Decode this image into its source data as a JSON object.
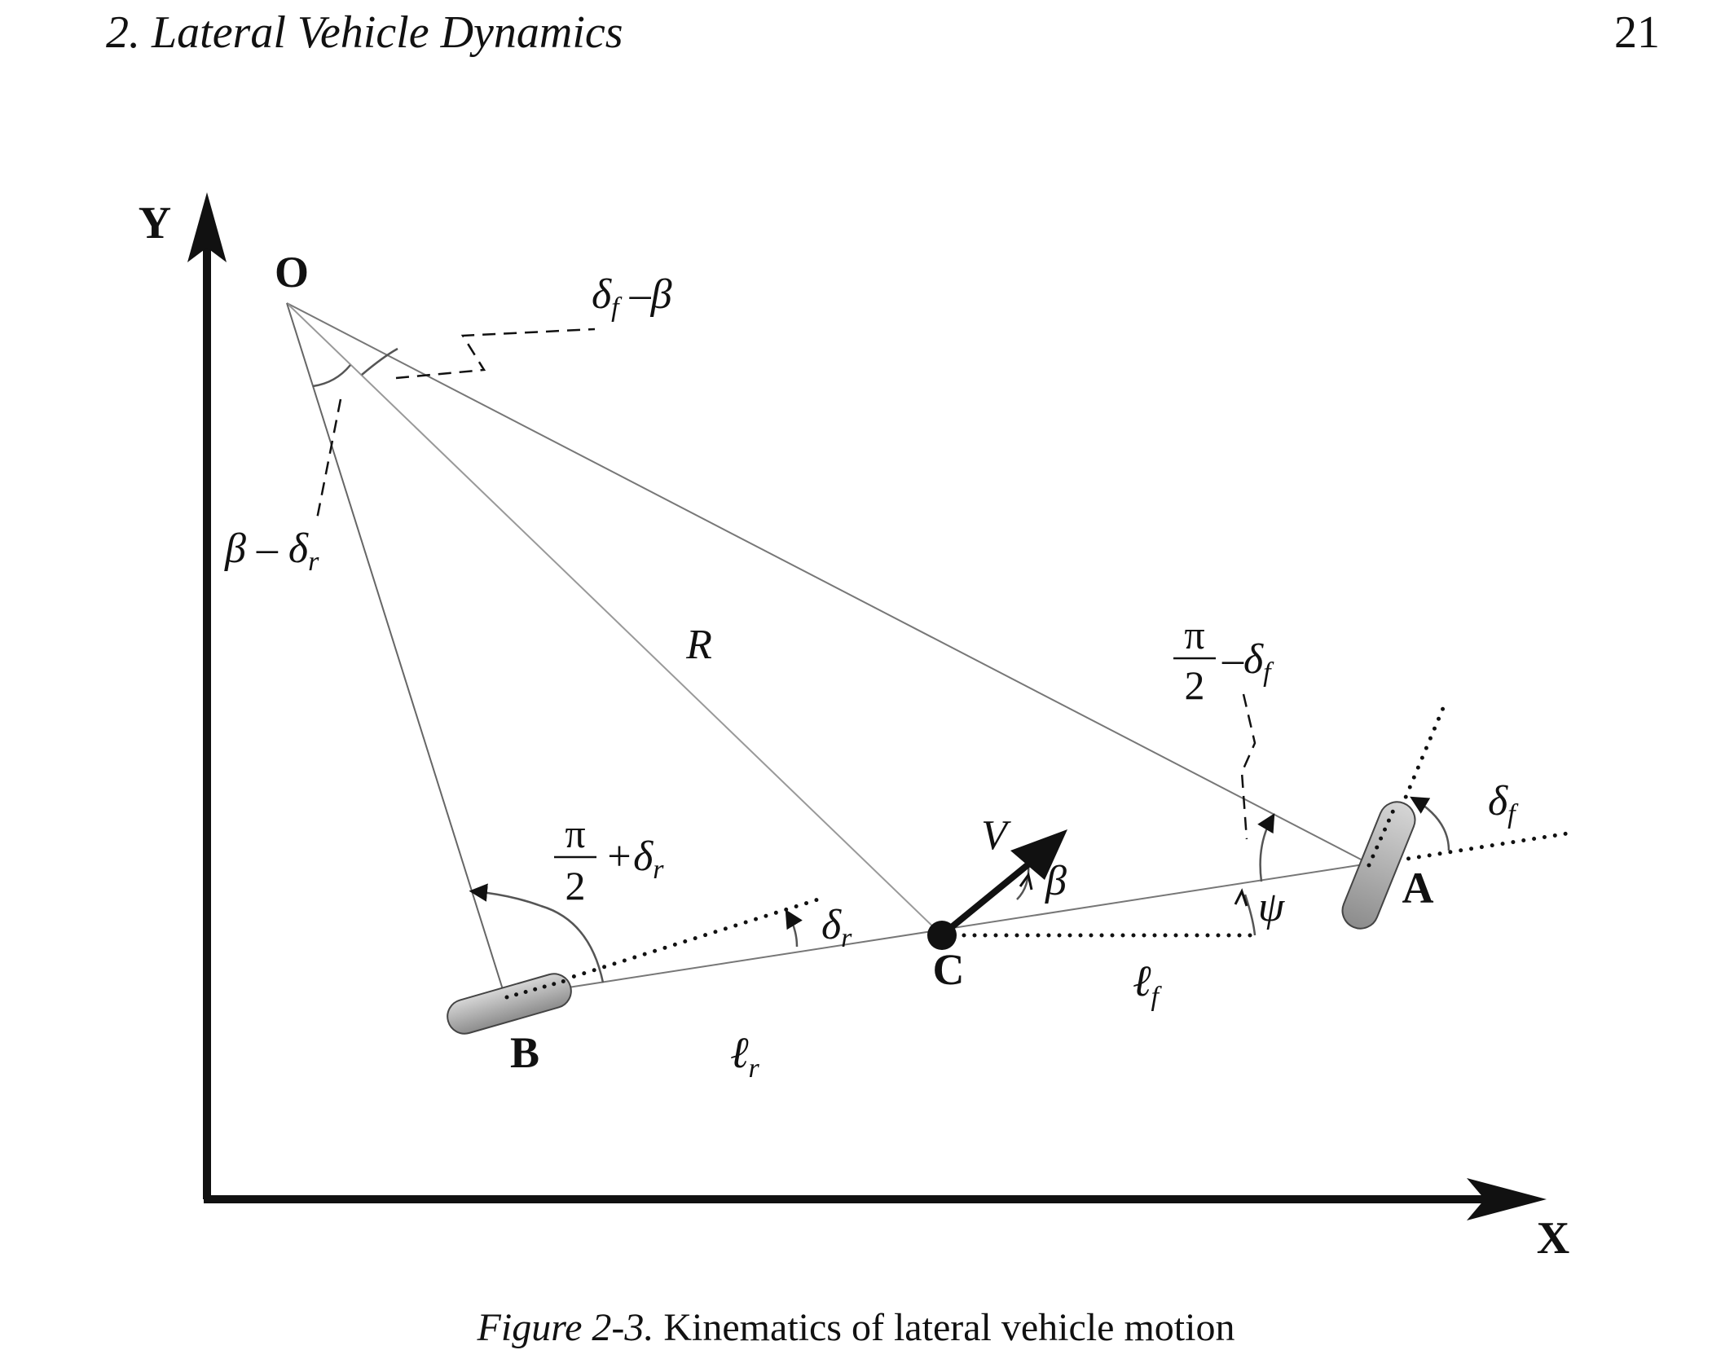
{
  "header": {
    "running_title": "2. Lateral Vehicle Dynamics",
    "page_number": "21"
  },
  "figure": {
    "caption_number": "Figure 2-3.",
    "caption_text": " Kinematics of lateral vehicle motion",
    "axes": {
      "x": "X",
      "y": "Y"
    },
    "points": {
      "O": "O",
      "A": "A",
      "B": "B",
      "C": "C"
    },
    "labels": {
      "radius": "R",
      "velocity": "V",
      "beta": "β",
      "psi": "ψ",
      "delta_f": "δ",
      "delta_f_sub": "f",
      "delta_r": "δ",
      "delta_r_sub": "r",
      "lf": "ℓ",
      "lf_sub": "f",
      "lr": "ℓ",
      "lr_sub": "r",
      "df_minus_beta_a": "δ",
      "df_minus_beta_sub": "f",
      "df_minus_beta_b": " –β",
      "beta_minus_dr_a": "β – δ",
      "beta_minus_dr_sub": "r",
      "pi": "π",
      "two": "2",
      "pi_minus_df_a": "–δ",
      "pi_minus_df_sub": "f",
      "pi_plus_dr_a": "+δ",
      "pi_plus_dr_sub": "r"
    }
  },
  "colors": {
    "ink": "#111111",
    "thin_line": "#777777",
    "wheel_fill": "#a9a9a9"
  }
}
